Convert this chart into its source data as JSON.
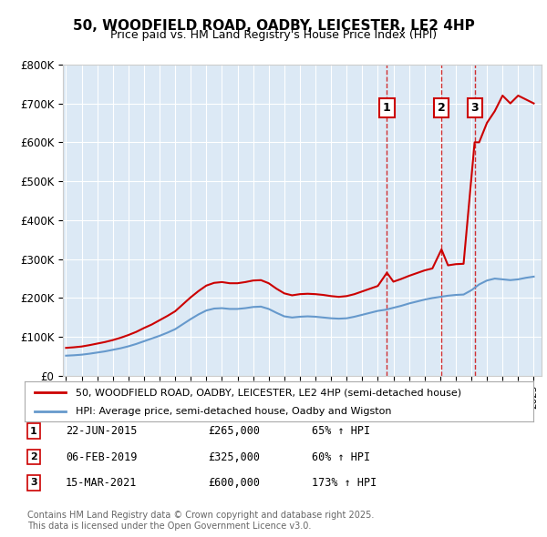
{
  "title": "50, WOODFIELD ROAD, OADBY, LEICESTER, LE2 4HP",
  "subtitle": "Price paid vs. HM Land Registry's House Price Index (HPI)",
  "background_color": "#ffffff",
  "chart_bg_color": "#dce9f5",
  "grid_color": "#ffffff",
  "ylabel": "",
  "ylim": [
    0,
    800000
  ],
  "yticks": [
    0,
    100000,
    200000,
    300000,
    400000,
    500000,
    600000,
    700000,
    800000
  ],
  "ytick_labels": [
    "£0",
    "£100K",
    "£200K",
    "£300K",
    "£400K",
    "£500K",
    "£600K",
    "£700K",
    "£800K"
  ],
  "legend_line1": "50, WOODFIELD ROAD, OADBY, LEICESTER, LE2 4HP (semi-detached house)",
  "legend_line2": "HPI: Average price, semi-detached house, Oadby and Wigston",
  "line1_color": "#cc0000",
  "line2_color": "#6699cc",
  "purchase_dates": [
    "2015-06-22",
    "2019-02-06",
    "2021-03-15"
  ],
  "purchase_prices": [
    265000,
    325000,
    600000
  ],
  "purchase_labels": [
    "1",
    "2",
    "3"
  ],
  "purchase_hpi_pct": [
    "65% ↑ HPI",
    "60% ↑ HPI",
    "173% ↑ HPI"
  ],
  "purchase_display_dates": [
    "22-JUN-2015",
    "06-FEB-2019",
    "15-MAR-2021"
  ],
  "footnote": "Contains HM Land Registry data © Crown copyright and database right 2025.\nThis data is licensed under the Open Government Licence v3.0.",
  "hpi_line_x": [
    1995.0,
    1995.5,
    1996.0,
    1996.5,
    1997.0,
    1997.5,
    1998.0,
    1998.5,
    1999.0,
    1999.5,
    2000.0,
    2000.5,
    2001.0,
    2001.5,
    2002.0,
    2002.5,
    2003.0,
    2003.5,
    2004.0,
    2004.5,
    2005.0,
    2005.5,
    2006.0,
    2006.5,
    2007.0,
    2007.5,
    2008.0,
    2008.5,
    2009.0,
    2009.5,
    2010.0,
    2010.5,
    2011.0,
    2011.5,
    2012.0,
    2012.5,
    2013.0,
    2013.5,
    2014.0,
    2014.5,
    2015.0,
    2015.5,
    2016.0,
    2016.5,
    2017.0,
    2017.5,
    2018.0,
    2018.5,
    2019.0,
    2019.5,
    2020.0,
    2020.5,
    2021.0,
    2021.5,
    2022.0,
    2022.5,
    2023.0,
    2023.5,
    2024.0,
    2024.5,
    2025.0
  ],
  "hpi_line_y": [
    52000,
    53000,
    54500,
    57000,
    60000,
    63000,
    67000,
    71000,
    76000,
    82000,
    89000,
    96000,
    103000,
    111000,
    120000,
    133000,
    146000,
    158000,
    168000,
    173000,
    174000,
    172000,
    172000,
    174000,
    177000,
    178000,
    172000,
    162000,
    153000,
    150000,
    152000,
    153000,
    152000,
    150000,
    148000,
    147000,
    148000,
    152000,
    157000,
    162000,
    167000,
    170000,
    175000,
    180000,
    186000,
    191000,
    196000,
    200000,
    203000,
    206000,
    208000,
    209000,
    220000,
    235000,
    245000,
    250000,
    248000,
    246000,
    248000,
    252000,
    255000
  ],
  "red_line_x": [
    1995.0,
    1995.5,
    1996.0,
    1996.5,
    1997.0,
    1997.5,
    1998.0,
    1998.5,
    1999.0,
    1999.5,
    2000.0,
    2000.5,
    2001.0,
    2001.5,
    2002.0,
    2002.5,
    2003.0,
    2003.5,
    2004.0,
    2004.5,
    2005.0,
    2005.5,
    2006.0,
    2006.5,
    2007.0,
    2007.5,
    2008.0,
    2008.5,
    2009.0,
    2009.5,
    2010.0,
    2010.5,
    2011.0,
    2011.5,
    2012.0,
    2012.5,
    2013.0,
    2013.5,
    2014.0,
    2014.5,
    2015.0,
    2015.583,
    2016.0,
    2016.5,
    2017.0,
    2017.5,
    2018.0,
    2018.5,
    2019.083,
    2019.5,
    2020.0,
    2020.5,
    2021.208,
    2021.5,
    2022.0,
    2022.5,
    2023.0,
    2023.5,
    2024.0,
    2024.5,
    2025.0
  ],
  "red_line_y": [
    72000,
    73500,
    75500,
    79000,
    83000,
    87000,
    92000,
    98000,
    105000,
    113000,
    123000,
    132000,
    143000,
    154000,
    166000,
    184000,
    202000,
    218000,
    232000,
    239000,
    241000,
    238000,
    238000,
    241000,
    245000,
    246000,
    238000,
    224000,
    212000,
    207000,
    210000,
    211000,
    210000,
    208000,
    205000,
    203000,
    205000,
    210000,
    217000,
    224000,
    231000,
    265000,
    242000,
    249000,
    257000,
    264000,
    271000,
    276000,
    325000,
    284000,
    287000,
    288000,
    600000,
    600000,
    650000,
    680000,
    720000,
    700000,
    720000,
    710000,
    700000
  ],
  "vline_dates": [
    2015.583,
    2019.083,
    2021.208
  ],
  "xmin": 1994.8,
  "xmax": 2025.5
}
